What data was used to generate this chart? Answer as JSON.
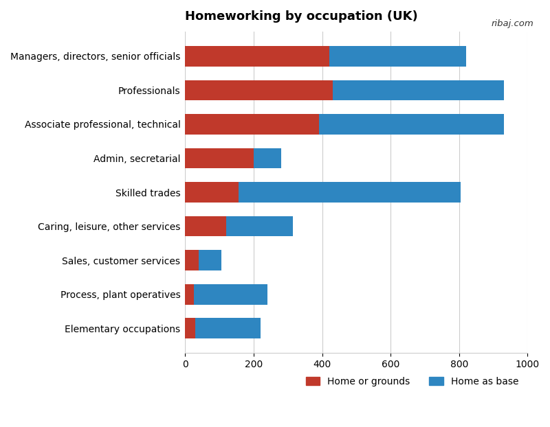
{
  "title": "Homeworking by occupation (UK)",
  "source": "ribaj.com",
  "categories": [
    "Managers, directors, senior officials",
    "Professionals",
    "Associate professional, technical",
    "Admin, secretarial",
    "Skilled trades",
    "Caring, leisure, other services",
    "Sales, customer services",
    "Process, plant operatives",
    "Elementary occupations"
  ],
  "home_or_grounds": [
    420,
    430,
    390,
    200,
    155,
    120,
    40,
    25,
    30
  ],
  "home_as_base": [
    400,
    500,
    540,
    80,
    650,
    195,
    65,
    215,
    190
  ],
  "color_red": "#c0392b",
  "color_blue": "#2e86c1",
  "xlim": [
    0,
    1000
  ],
  "xticks": [
    0,
    200,
    400,
    600,
    800,
    1000
  ],
  "legend_labels": [
    "Home or grounds",
    "Home as base"
  ],
  "title_fontsize": 13,
  "label_fontsize": 10,
  "tick_fontsize": 10,
  "background_color": "#ffffff",
  "grid_color": "#cccccc"
}
